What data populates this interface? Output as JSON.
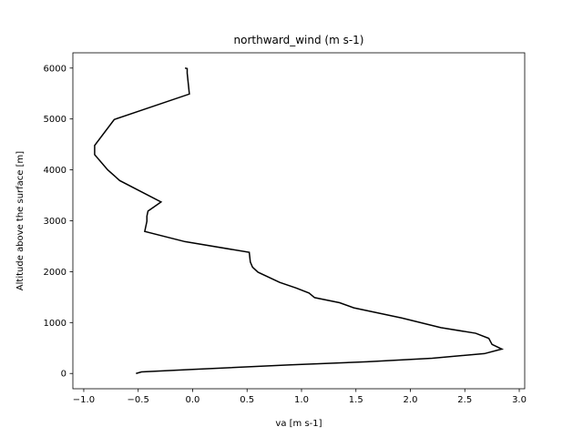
{
  "chart_data": {
    "type": "line",
    "title": "northward_wind (m s-1)",
    "xlabel": "va [m s-1]",
    "ylabel": "Altitude above the surface [m]",
    "xlim": [
      -1.1,
      3.05
    ],
    "ylim": [
      -300,
      6300
    ],
    "xticks": [
      -1.0,
      -0.5,
      0.0,
      0.5,
      1.0,
      1.5,
      2.0,
      2.5,
      3.0
    ],
    "xtick_labels": [
      "−1.0",
      "−0.5",
      "0.0",
      "0.5",
      "1.0",
      "1.5",
      "2.0",
      "2.5",
      "3.0"
    ],
    "yticks": [
      0,
      1000,
      2000,
      3000,
      4000,
      5000,
      6000
    ],
    "ytick_labels": [
      "0",
      "1000",
      "2000",
      "3000",
      "4000",
      "5000",
      "6000"
    ],
    "grid": false,
    "series": [
      {
        "color": "#000000",
        "points": [
          [
            -0.52,
            0
          ],
          [
            -0.47,
            30
          ],
          [
            0.0,
            80
          ],
          [
            0.9,
            170
          ],
          [
            1.6,
            230
          ],
          [
            2.2,
            300
          ],
          [
            2.68,
            390
          ],
          [
            2.84,
            480
          ],
          [
            2.75,
            570
          ],
          [
            2.72,
            690
          ],
          [
            2.6,
            790
          ],
          [
            2.28,
            900
          ],
          [
            1.92,
            1090
          ],
          [
            1.48,
            1290
          ],
          [
            1.35,
            1390
          ],
          [
            1.12,
            1490
          ],
          [
            1.07,
            1580
          ],
          [
            0.95,
            1680
          ],
          [
            0.8,
            1790
          ],
          [
            0.6,
            1990
          ],
          [
            0.55,
            2090
          ],
          [
            0.53,
            2190
          ],
          [
            0.52,
            2380
          ],
          [
            -0.07,
            2590
          ],
          [
            -0.44,
            2790
          ],
          [
            -0.42,
            2990
          ],
          [
            -0.42,
            3090
          ],
          [
            -0.41,
            3190
          ],
          [
            -0.29,
            3370
          ],
          [
            -0.67,
            3790
          ],
          [
            -0.78,
            4000
          ],
          [
            -0.9,
            4300
          ],
          [
            -0.9,
            4480
          ],
          [
            -0.72,
            4990
          ],
          [
            -0.03,
            5490
          ],
          [
            -0.05,
            5900
          ],
          [
            -0.05,
            5990
          ],
          [
            -0.07,
            6000
          ]
        ]
      }
    ]
  }
}
